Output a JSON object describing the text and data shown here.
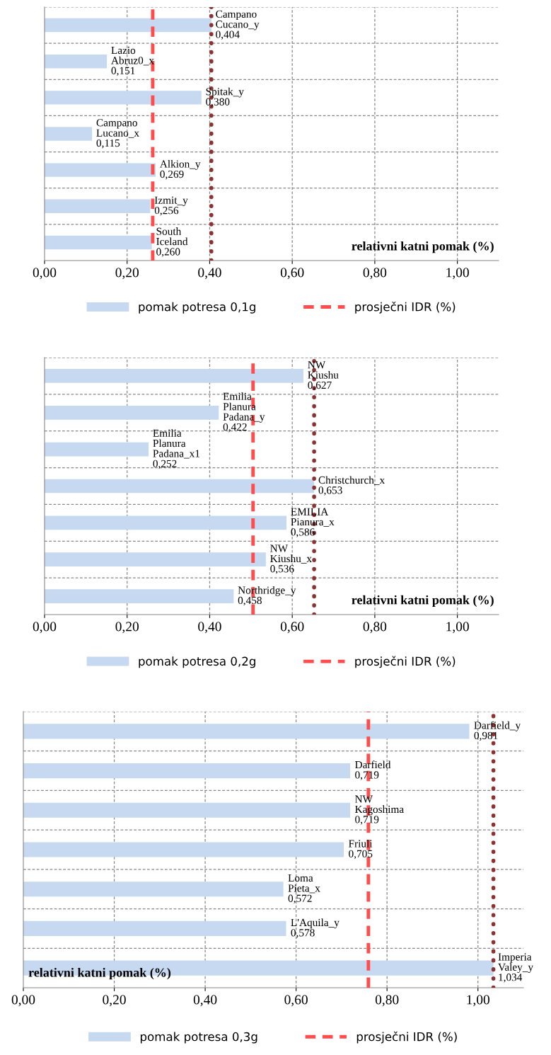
{
  "chart_data": [
    {
      "type": "bar",
      "orientation": "horizontal",
      "categories": [
        null,
        null,
        null,
        null,
        null,
        null,
        null
      ],
      "xlabel": "relativni katni pomak (%)",
      "series": [
        {
          "name": "pomak potresa 0,1g",
          "color": "#c6d9f0",
          "values": [
            0.404,
            0.151,
            0.38,
            0.115,
            0.269,
            0.256,
            0.26
          ],
          "value_labels": [
            "Campano\nCucano_y\n0,404",
            "Lazio\nAbruz0_x\n0,151",
            "Spitak_y\n0,380",
            "Campano\nLucano_x\n0,115",
            "Alkion_y\n0,269",
            "Izmit_y\n0,256",
            "South\nIceland\n0,260"
          ]
        }
      ],
      "xlim": [
        0,
        1.1
      ],
      "xticks": [
        {
          "value": 0,
          "label": "0,00"
        },
        {
          "value": 0.2,
          "label": "0,20"
        },
        {
          "value": 0.4,
          "label": "0,40"
        },
        {
          "value": 0.6,
          "label": "0,60"
        },
        {
          "value": 0.8,
          "label": "0,80"
        },
        {
          "value": 1.0,
          "label": "1,00"
        }
      ],
      "ref_lines": [
        {
          "axis": "x",
          "value": 0.262,
          "label": "prosječni IDR (%)",
          "color": "#ff4d4d",
          "line_style": "dashed"
        },
        {
          "axis": "x",
          "value": 0.404,
          "color": "#8b3232",
          "line_style": "dotted"
        }
      ],
      "grid": true,
      "legend": "bottom"
    },
    {
      "type": "bar",
      "orientation": "horizontal",
      "categories": [
        null,
        null,
        null,
        null,
        null,
        null,
        null
      ],
      "xlabel": "relativni katni pomak (%)",
      "series": [
        {
          "name": "pomak potresa 0,2g",
          "color": "#c6d9f0",
          "values": [
            0.627,
            0.422,
            0.252,
            0.653,
            0.586,
            0.536,
            0.458
          ],
          "value_labels": [
            "NW\nKiushu\n0,627",
            "Emilia\nPlanura\nPadana_y\n0,422",
            "Emilia\nPlanura\nPadana_x1\n0,252",
            "Christchurch_x\n0,653",
            "EMILIA\nPianura_x\n0,586",
            "NW\nKiushu_x\n0,536",
            "Northridge_y\n0,458"
          ]
        }
      ],
      "xlim": [
        0,
        1.1
      ],
      "xticks": [
        {
          "value": 0,
          "label": "0,00"
        },
        {
          "value": 0.2,
          "label": "0,20"
        },
        {
          "value": 0.4,
          "label": "0,40"
        },
        {
          "value": 0.6,
          "label": "0,60"
        },
        {
          "value": 0.8,
          "label": "0,80"
        },
        {
          "value": 1.0,
          "label": "1,00"
        }
      ],
      "ref_lines": [
        {
          "axis": "x",
          "value": 0.505,
          "label": "prosječni IDR (%)",
          "color": "#ff4d4d",
          "line_style": "dashed"
        },
        {
          "axis": "x",
          "value": 0.653,
          "color": "#8b3232",
          "line_style": "dotted"
        }
      ],
      "grid": true,
      "legend": "bottom"
    },
    {
      "type": "bar",
      "orientation": "horizontal",
      "categories": [
        null,
        null,
        null,
        null,
        null,
        null,
        null
      ],
      "xlabel": "relativni katni pomak (%)",
      "series": [
        {
          "name": "pomak potresa 0,3g",
          "color": "#c6d9f0",
          "values": [
            0.981,
            0.719,
            0.719,
            0.705,
            0.572,
            0.578,
            1.034
          ],
          "value_labels": [
            "Darfield_y\n0,981",
            "Darfield\n0,719",
            "NW\nKagoshima\n0,719",
            "Friuli\n0,705",
            "Loma\nPieta_x\n0,572",
            "L'Aquila_y\n0,578",
            "Imperia\nValey_y\n1,034"
          ]
        }
      ],
      "xlim": [
        0,
        1.1
      ],
      "xticks": [
        {
          "value": 0,
          "label": "0,00"
        },
        {
          "value": 0.2,
          "label": "0,20"
        },
        {
          "value": 0.4,
          "label": "0,40"
        },
        {
          "value": 0.6,
          "label": "0,60"
        },
        {
          "value": 0.8,
          "label": "0,80"
        },
        {
          "value": 1.0,
          "label": "1,00"
        }
      ],
      "ref_lines": [
        {
          "axis": "x",
          "value": 0.759,
          "label": "prosječni IDR (%)",
          "color": "#ff4d4d",
          "line_style": "dashed"
        },
        {
          "axis": "x",
          "value": 1.034,
          "color": "#8b3232",
          "line_style": "dotted"
        }
      ],
      "grid": true,
      "legend": "bottom"
    }
  ]
}
